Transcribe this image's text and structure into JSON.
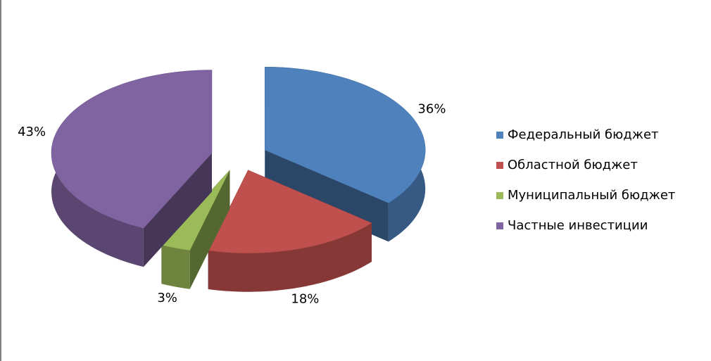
{
  "chart_data": {
    "type": "pie3d",
    "categories": [
      "Федеральный бюджет",
      "Областной бюджет",
      "Муниципальный бюджет",
      "Частные инвестиции"
    ],
    "values": [
      36,
      18,
      3,
      43
    ],
    "value_labels": [
      "36%",
      "18%",
      "3%",
      "43%"
    ],
    "colors": [
      "#4f81bd",
      "#c0504d",
      "#9bbb59",
      "#8064a2"
    ],
    "legend": "right"
  }
}
